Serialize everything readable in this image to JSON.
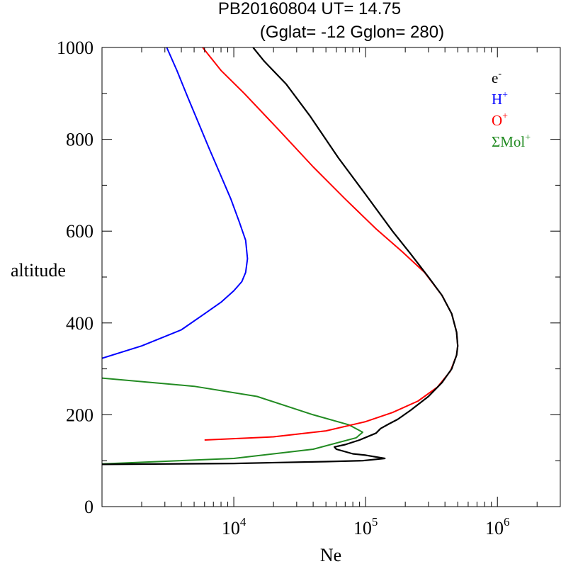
{
  "chart_data": {
    "type": "line",
    "title": "PB20160804   UT=  14.75",
    "subtitle": "(Gglat= -12   Gglon=  280)",
    "xlabel": "Ne",
    "ylabel": "altitude",
    "xscale": "log",
    "xlim": [
      1000,
      3000000
    ],
    "ylim": [
      0,
      1000
    ],
    "grid": false,
    "legend_position": "top-right",
    "x_ticks": [
      {
        "value": 10000,
        "base": "10",
        "exp": "4"
      },
      {
        "value": 100000,
        "base": "10",
        "exp": "5"
      },
      {
        "value": 1000000,
        "base": "10",
        "exp": "6"
      }
    ],
    "y_ticks": [
      0,
      200,
      400,
      600,
      800,
      1000
    ],
    "series": [
      {
        "name": "e-",
        "legend_base": "e",
        "legend_sup": "-",
        "color": "#000000",
        "points": [
          [
            1000,
            92
          ],
          [
            10000,
            94
          ],
          [
            50000,
            98
          ],
          [
            95000,
            100
          ],
          [
            140000,
            105
          ],
          [
            100000,
            112
          ],
          [
            80000,
            115
          ],
          [
            60000,
            125
          ],
          [
            58000,
            130
          ],
          [
            70000,
            135
          ],
          [
            90000,
            145
          ],
          [
            120000,
            160
          ],
          [
            130000,
            170
          ],
          [
            150000,
            180
          ],
          [
            175000,
            190
          ],
          [
            220000,
            210
          ],
          [
            300000,
            240
          ],
          [
            380000,
            270
          ],
          [
            450000,
            300
          ],
          [
            490000,
            330
          ],
          [
            500000,
            350
          ],
          [
            490000,
            380
          ],
          [
            450000,
            420
          ],
          [
            380000,
            460
          ],
          [
            300000,
            500
          ],
          [
            220000,
            550
          ],
          [
            160000,
            600
          ],
          [
            100000,
            680
          ],
          [
            62000,
            760
          ],
          [
            38000,
            850
          ],
          [
            25000,
            920
          ],
          [
            17000,
            970
          ],
          [
            14000,
            1000
          ]
        ]
      },
      {
        "name": "H+",
        "legend_base": "H",
        "legend_sup": "+",
        "color": "#0000ff",
        "points": [
          [
            1000,
            323
          ],
          [
            2000,
            350
          ],
          [
            4000,
            385
          ],
          [
            6000,
            420
          ],
          [
            8000,
            445
          ],
          [
            10000,
            470
          ],
          [
            11500,
            490
          ],
          [
            12300,
            510
          ],
          [
            12700,
            540
          ],
          [
            12300,
            580
          ],
          [
            11000,
            620
          ],
          [
            9500,
            670
          ],
          [
            8000,
            720
          ],
          [
            6500,
            780
          ],
          [
            5500,
            830
          ],
          [
            4500,
            890
          ],
          [
            3700,
            950
          ],
          [
            3100,
            1000
          ]
        ]
      },
      {
        "name": "O+",
        "legend_base": "O",
        "legend_sup": "+",
        "color": "#ff0000",
        "points": [
          [
            6000,
            145
          ],
          [
            20000,
            152
          ],
          [
            50000,
            165
          ],
          [
            100000,
            185
          ],
          [
            160000,
            205
          ],
          [
            250000,
            230
          ],
          [
            350000,
            260
          ],
          [
            440000,
            295
          ],
          [
            490000,
            330
          ],
          [
            500000,
            350
          ],
          [
            490000,
            380
          ],
          [
            450000,
            420
          ],
          [
            380000,
            460
          ],
          [
            280000,
            510
          ],
          [
            190000,
            555
          ],
          [
            120000,
            605
          ],
          [
            70000,
            670
          ],
          [
            40000,
            740
          ],
          [
            22000,
            820
          ],
          [
            12000,
            900
          ],
          [
            8000,
            950
          ],
          [
            5800,
            1000
          ]
        ]
      },
      {
        "name": "ΣMol+",
        "legend_base": "ΣMol",
        "legend_sup": "+",
        "color": "#228b22",
        "points": [
          [
            1000,
            280
          ],
          [
            5000,
            262
          ],
          [
            15000,
            240
          ],
          [
            40000,
            200
          ],
          [
            75000,
            178
          ],
          [
            95000,
            162
          ],
          [
            85000,
            150
          ],
          [
            40000,
            125
          ],
          [
            10000,
            105
          ],
          [
            1000,
            93
          ]
        ]
      }
    ]
  }
}
